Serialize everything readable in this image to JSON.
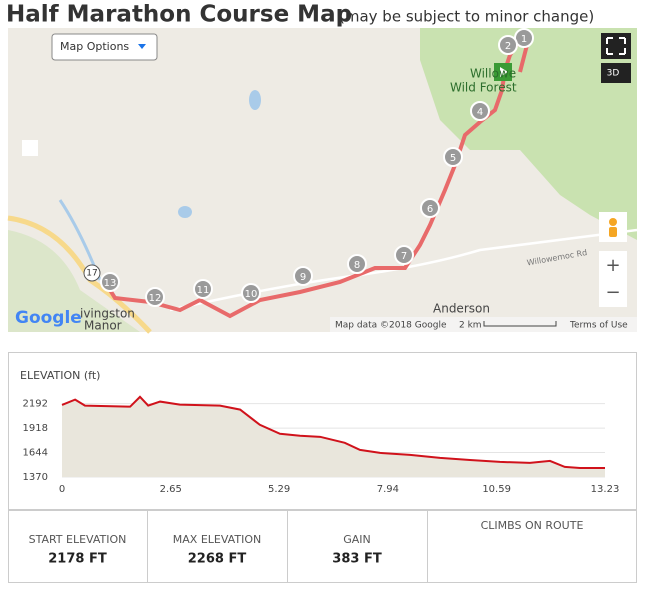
{
  "header": {
    "title": "Half Marathon Course Map",
    "subtitle": "(may be subject to minor change)"
  },
  "map": {
    "options_button": "Map Options",
    "view_3d": "3D",
    "zoom_in": "+",
    "zoom_out": "−",
    "place_labels": [
      "Willowe",
      "Wild Forest",
      "Anderson",
      "ivingston",
      "Manor",
      "Willowemoc Rd"
    ],
    "route_shield": "17",
    "logo": "Google",
    "attribution": "Map data ©2018 Google",
    "scale": "2 km",
    "terms": "Terms of Use",
    "markers": [
      "1",
      "2",
      "4",
      "5",
      "6",
      "7",
      "8",
      "9",
      "10",
      "11",
      "12",
      "13"
    ]
  },
  "chart_data": {
    "type": "line",
    "title": "ELEVATION (ft)",
    "x": [
      0,
      0.32,
      0.56,
      1.66,
      1.9,
      2.1,
      2.39,
      2.87,
      3.85,
      4.34,
      4.82,
      5.31,
      5.8,
      6.29,
      6.89,
      7.26,
      7.75,
      8.48,
      9.21,
      9.94,
      10.67,
      11.4,
      11.89,
      12.25,
      12.62,
      13.23
    ],
    "series": [
      {
        "name": "Elevation",
        "color": "#d0121b",
        "values": [
          2178,
          2237,
          2170,
          2158,
          2268,
          2170,
          2215,
          2181,
          2170,
          2125,
          1955,
          1854,
          1832,
          1820,
          1753,
          1674,
          1640,
          1618,
          1584,
          1561,
          1539,
          1528,
          1550,
          1483,
          1471,
          1471
        ]
      }
    ],
    "fill": "#e9e6dc",
    "xlim": [
      0,
      13.23
    ],
    "xticks": [
      0,
      2.65,
      5.29,
      7.94,
      10.59,
      13.23
    ],
    "ylim": [
      1370,
      2300
    ],
    "yticks": [
      1370,
      1644,
      1918,
      2192
    ],
    "grid": true
  },
  "stats": [
    {
      "label": "START ELEVATION",
      "value": "2178 FT"
    },
    {
      "label": "MAX ELEVATION",
      "value": "2268 FT"
    },
    {
      "label": "GAIN",
      "value": "383 FT"
    },
    {
      "label": "CLIMBS ON ROUTE"
    }
  ]
}
